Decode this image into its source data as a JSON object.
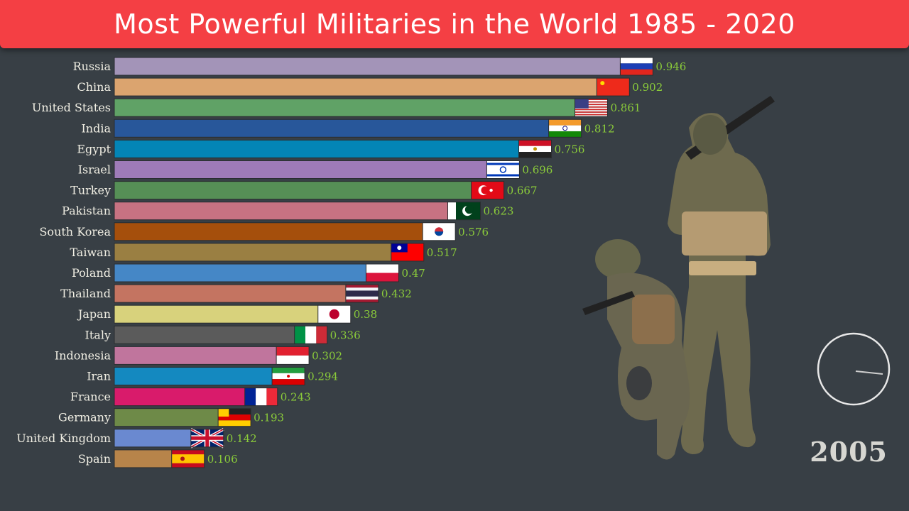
{
  "banner": {
    "title": "Most Powerful Militaries in the World 1985 - 2020"
  },
  "year": "2005",
  "colors": {
    "background": "#383f45",
    "banner": "#f43f44",
    "value_text": "#8bcc3a",
    "label_text": "#f1efe4"
  },
  "chart_data": {
    "type": "bar",
    "orientation": "horizontal",
    "title": "Most Powerful Militaries in the World 1985 - 2020",
    "xlabel": "",
    "ylabel": "",
    "year": "2005",
    "categories": [
      "Russia",
      "China",
      "United States",
      "India",
      "Egypt",
      "Israel",
      "Turkey",
      "Pakistan",
      "South Korea",
      "Taiwan",
      "Poland",
      "Thailand",
      "Japan",
      "Italy",
      "Indonesia",
      "Iran",
      "France",
      "Germany",
      "United Kingdom",
      "Spain"
    ],
    "values": [
      0.946,
      0.902,
      0.861,
      0.812,
      0.756,
      0.696,
      0.667,
      0.623,
      0.576,
      0.517,
      0.47,
      0.432,
      0.38,
      0.336,
      0.302,
      0.294,
      0.243,
      0.193,
      0.142,
      0.106
    ],
    "value_labels": [
      "0.946",
      "0.902",
      "0.861",
      "0.812",
      "0.756",
      "0.696",
      "0.667",
      "0.623",
      "0.576",
      "0.517",
      "0.47",
      "0.432",
      "0.38",
      "0.336",
      "0.302",
      "0.294",
      "0.243",
      "0.193",
      "0.142",
      "0.106"
    ],
    "bar_colors": [
      "#a394b8",
      "#dba46f",
      "#60a266",
      "#28579a",
      "#0385b6",
      "#9e7bb8",
      "#568f56",
      "#c77282",
      "#a54f0c",
      "#9a7f42",
      "#4587c6",
      "#c47461",
      "#d8d27c",
      "#5b5b5b",
      "#c0759d",
      "#1489c0",
      "#d91b6b",
      "#6e8a48",
      "#6a89d0",
      "#b7844a"
    ],
    "flags": [
      "russia-flag",
      "china-flag",
      "usa-flag",
      "india-flag",
      "egypt-flag",
      "israel-flag",
      "turkey-flag",
      "pakistan-flag",
      "south-korea-flag",
      "taiwan-flag",
      "poland-flag",
      "thailand-flag",
      "japan-flag",
      "italy-flag",
      "indonesia-flag",
      "iran-flag",
      "france-flag",
      "germany-flag",
      "uk-flag",
      "spain-flag"
    ],
    "grid": false,
    "legend": "none"
  }
}
